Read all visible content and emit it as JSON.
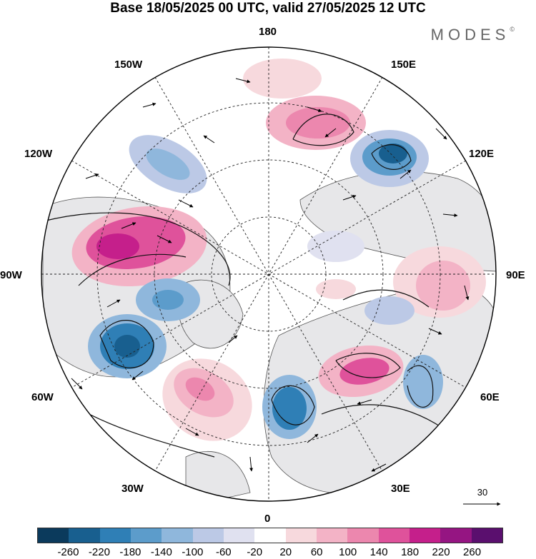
{
  "title": "Base 18/05/2025 00 UTC, valid 27/05/2025 12 UTC",
  "brand": "MODES",
  "brand_mark": "©",
  "longitude_labels": {
    "lon_180": "180",
    "lon_150e": "150E",
    "lon_120e": "120E",
    "lon_90e": "90E",
    "lon_60e": "60E",
    "lon_30e": "30E",
    "lon_0": "0",
    "lon_30w": "30W",
    "lon_60w": "60W",
    "lon_90w": "90W",
    "lon_120w": "120W",
    "lon_150w": "150W"
  },
  "vector_reference": "30",
  "colorbar": {
    "ticks": [
      "-260",
      "-220",
      "-180",
      "-140",
      "-100",
      "-60",
      "-20",
      "20",
      "60",
      "100",
      "140",
      "180",
      "220",
      "260"
    ],
    "colors": [
      "#0b3a5c",
      "#185f8f",
      "#2f7fb6",
      "#5c9ccb",
      "#8fb7dc",
      "#bcc9e6",
      "#e0e1f0",
      "#ffffff",
      "#f7d9dd",
      "#f3b3c6",
      "#ec87ae",
      "#df529b",
      "#c51f8b",
      "#951582",
      "#5a0f6e"
    ]
  },
  "anomalies": [
    {
      "name": "anom-north-canada-positive",
      "sign": "positive",
      "value": 200
    },
    {
      "name": "anom-atlantic-negative",
      "sign": "negative",
      "value": -220
    },
    {
      "name": "anom-labrador-negative",
      "sign": "negative",
      "value": -140
    },
    {
      "name": "anom-east-siberia-negative",
      "sign": "negative",
      "value": -220
    },
    {
      "name": "anom-north-pacific-positive",
      "sign": "positive",
      "value": 120
    },
    {
      "name": "anom-scandinavia-negative",
      "sign": "negative",
      "value": -180
    },
    {
      "name": "anom-north-atlantic-positive",
      "sign": "positive",
      "value": 140
    },
    {
      "name": "anom-russia-positive",
      "sign": "positive",
      "value": 140
    },
    {
      "name": "anom-central-asia-negative",
      "sign": "negative",
      "value": -100
    },
    {
      "name": "anom-siberia-positive",
      "sign": "positive",
      "value": 80
    },
    {
      "name": "anom-alaska-negative",
      "sign": "negative",
      "value": -120
    },
    {
      "name": "anom-kara-negative",
      "sign": "negative",
      "value": -60
    }
  ]
}
